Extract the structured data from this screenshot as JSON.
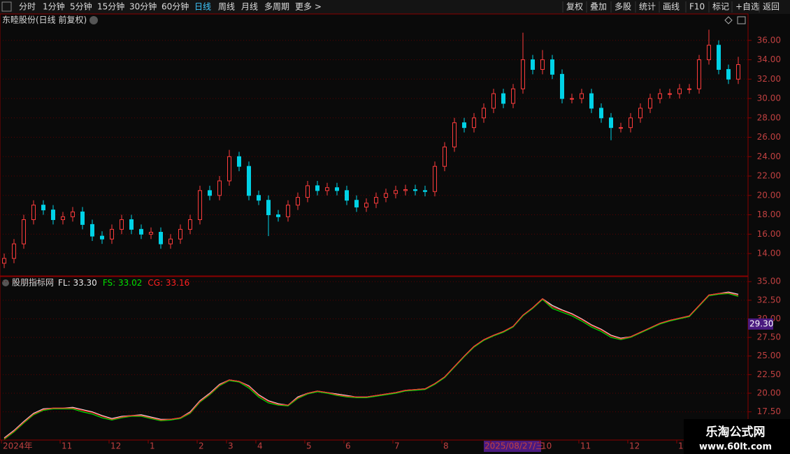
{
  "toolbar": {
    "left": [
      "分时",
      "1分钟",
      "5分钟",
      "15分钟",
      "30分钟",
      "60分钟",
      "日线",
      "周线",
      "月线",
      "多周期",
      "更多 >"
    ],
    "active_index": 6,
    "right": [
      "复权",
      "叠加",
      "多股",
      "统计",
      "画线",
      "F10",
      "标记",
      "+自选",
      "返回"
    ]
  },
  "watermark": {
    "title": "乐淘公式网",
    "url": "www.60lt.com"
  },
  "chart_data": [
    {
      "type": "candlestick",
      "title": "东睦股份(日线 前复权)",
      "up_color": "#ff3c3c",
      "down_color": "#00d2e6",
      "categories": [
        "2024年",
        null,
        null,
        null,
        null,
        null,
        "11",
        null,
        null,
        null,
        null,
        "12",
        null,
        null,
        null,
        "1",
        null,
        null,
        null,
        null,
        "2",
        null,
        null,
        "3",
        null,
        null,
        "4",
        null,
        null,
        null,
        null,
        "5",
        null,
        null,
        null,
        "6",
        null,
        null,
        null,
        null,
        "7",
        null,
        null,
        null,
        null,
        "8",
        null,
        null,
        null,
        null,
        "2025/08/27/三",
        null,
        null,
        null,
        null,
        "10",
        null,
        null,
        null,
        "11",
        null,
        null,
        null,
        null,
        "12",
        null,
        null,
        null,
        null,
        "1",
        null,
        null,
        null,
        null,
        null,
        null
      ],
      "x_cursor_index": 50,
      "open": [
        13.0,
        13.5,
        15.0,
        17.5,
        19.0,
        18.5,
        17.5,
        17.8,
        18.3,
        17.0,
        15.8,
        15.5,
        16.5,
        17.5,
        16.5,
        16.0,
        16.2,
        15.0,
        15.5,
        16.5,
        17.5,
        20.5,
        20.0,
        21.5,
        24.0,
        23.0,
        20.0,
        19.5,
        18.0,
        17.8,
        19.0,
        19.8,
        21.0,
        20.5,
        20.8,
        20.5,
        19.5,
        18.8,
        19.2,
        19.8,
        20.2,
        20.5,
        20.6,
        20.5,
        20.4,
        23.0,
        25.0,
        27.5,
        27.0,
        28.0,
        29.0,
        30.5,
        29.5,
        31.0,
        34.0,
        33.0,
        34.0,
        32.5,
        30.0,
        30.0,
        30.5,
        29.0,
        28.0,
        27.0,
        27.0,
        28.0,
        29.0,
        30.0,
        30.5,
        30.5,
        31.0,
        31.0,
        34.0,
        35.5,
        33.0,
        32.0
      ],
      "high": [
        14.0,
        15.5,
        18.0,
        19.5,
        19.5,
        19.0,
        18.3,
        18.8,
        18.8,
        17.5,
        16.3,
        17.0,
        18.0,
        18.0,
        17.0,
        16.7,
        16.7,
        16.0,
        17.0,
        18.0,
        21.0,
        21.0,
        22.0,
        24.7,
        24.5,
        23.5,
        20.5,
        20.0,
        18.5,
        19.5,
        20.3,
        21.5,
        21.5,
        21.3,
        21.3,
        21.0,
        20.0,
        19.7,
        20.3,
        20.7,
        21.0,
        21.1,
        21.1,
        21.0,
        23.5,
        25.5,
        28.0,
        28.0,
        28.5,
        29.5,
        31.0,
        31.0,
        31.5,
        36.8,
        34.5,
        35.0,
        34.5,
        33.0,
        30.5,
        31.0,
        31.0,
        29.5,
        28.5,
        27.5,
        28.5,
        29.5,
        30.5,
        31.0,
        31.0,
        31.5,
        31.5,
        34.5,
        37.1,
        36.0,
        33.5,
        34.3
      ],
      "low": [
        12.5,
        13.0,
        14.5,
        17.0,
        18.0,
        17.0,
        17.0,
        17.3,
        16.5,
        15.3,
        15.0,
        15.0,
        16.0,
        16.0,
        15.5,
        15.5,
        14.5,
        14.5,
        15.0,
        16.0,
        17.0,
        19.5,
        19.5,
        21.0,
        22.5,
        19.5,
        19.0,
        15.8,
        17.3,
        17.3,
        18.5,
        19.3,
        20.0,
        20.0,
        20.0,
        19.0,
        18.3,
        18.3,
        18.7,
        19.3,
        19.7,
        20.0,
        20.0,
        19.9,
        19.9,
        22.5,
        24.5,
        26.5,
        26.5,
        27.5,
        28.5,
        29.0,
        29.0,
        30.5,
        32.5,
        32.5,
        32.0,
        29.5,
        29.5,
        29.5,
        28.5,
        27.5,
        25.7,
        26.5,
        26.5,
        27.5,
        28.5,
        29.5,
        30.0,
        30.0,
        30.5,
        30.5,
        33.5,
        32.5,
        31.5,
        31.5
      ],
      "close": [
        13.5,
        15.0,
        17.5,
        19.0,
        18.5,
        17.5,
        17.8,
        18.3,
        17.0,
        15.8,
        15.5,
        16.5,
        17.5,
        16.5,
        16.0,
        16.2,
        15.0,
        15.5,
        16.5,
        17.5,
        20.5,
        20.0,
        21.5,
        24.0,
        23.0,
        20.0,
        19.5,
        18.0,
        17.8,
        19.0,
        19.8,
        21.0,
        20.5,
        20.8,
        20.5,
        19.5,
        18.8,
        19.2,
        19.8,
        20.2,
        20.5,
        20.6,
        20.5,
        20.4,
        23.0,
        25.0,
        27.5,
        27.0,
        28.0,
        29.0,
        30.5,
        29.5,
        31.0,
        34.0,
        33.0,
        34.0,
        32.5,
        30.0,
        30.0,
        30.5,
        29.0,
        28.0,
        27.0,
        27.0,
        28.0,
        29.0,
        30.0,
        30.5,
        30.5,
        31.0,
        31.0,
        34.0,
        35.5,
        33.0,
        32.0,
        33.5
      ],
      "ylim": [
        12.2,
        37.5
      ],
      "yticks": [
        {
          "value": 14,
          "label": "14.00"
        },
        {
          "value": 16,
          "label": "16.00"
        },
        {
          "value": 18,
          "label": "18.00"
        },
        {
          "value": 20,
          "label": "20.00"
        },
        {
          "value": 22,
          "label": "22.00"
        },
        {
          "value": 24,
          "label": "24.00"
        },
        {
          "value": 26,
          "label": "26.00"
        },
        {
          "value": 28,
          "label": "28.00"
        },
        {
          "value": 30,
          "label": "30.00"
        },
        {
          "value": 32,
          "label": "32.00"
        },
        {
          "value": 34,
          "label": "34.00"
        },
        {
          "value": 36,
          "label": "36.00"
        }
      ],
      "grid": true
    },
    {
      "type": "line",
      "title": "股朋指标网",
      "series": [
        {
          "name": "FL",
          "color": "#e8e8e8",
          "legend_value_label": "33.30",
          "values": [
            14.0,
            15.0,
            16.2,
            17.3,
            17.9,
            18.0,
            18.0,
            18.1,
            17.8,
            17.5,
            17.0,
            16.6,
            16.9,
            17.0,
            17.1,
            16.8,
            16.5,
            16.5,
            16.7,
            17.5,
            19.0,
            20.0,
            21.2,
            21.8,
            21.6,
            21.0,
            19.8,
            19.0,
            18.6,
            18.4,
            19.5,
            20.0,
            20.3,
            20.1,
            19.9,
            19.7,
            19.5,
            19.5,
            19.7,
            19.9,
            20.1,
            20.4,
            20.5,
            20.6,
            21.3,
            22.2,
            23.6,
            25.0,
            26.3,
            27.2,
            27.8,
            28.3,
            29.0,
            30.5,
            31.5,
            32.7,
            31.8,
            31.2,
            30.7,
            30.0,
            29.2,
            28.6,
            27.8,
            27.4,
            27.6,
            28.2,
            28.8,
            29.4,
            29.8,
            30.1,
            30.4,
            31.8,
            33.2,
            33.4,
            33.6,
            33.3
          ]
        },
        {
          "name": "FS",
          "color": "#00e000",
          "legend_value_label": "33.02",
          "values": [
            13.8,
            14.8,
            16.0,
            17.1,
            17.7,
            17.9,
            17.9,
            17.9,
            17.5,
            17.2,
            16.7,
            16.4,
            16.7,
            16.9,
            16.9,
            16.6,
            16.3,
            16.4,
            16.6,
            17.3,
            18.8,
            19.8,
            21.0,
            21.7,
            21.5,
            20.7,
            19.5,
            18.7,
            18.4,
            18.3,
            19.3,
            19.9,
            20.2,
            20.0,
            19.7,
            19.5,
            19.4,
            19.4,
            19.6,
            19.8,
            20.0,
            20.3,
            20.4,
            20.5,
            21.2,
            22.1,
            23.5,
            24.9,
            26.2,
            27.1,
            27.7,
            28.2,
            28.9,
            30.4,
            31.4,
            32.6,
            31.4,
            30.9,
            30.4,
            29.7,
            28.9,
            28.3,
            27.5,
            27.2,
            27.5,
            28.1,
            28.7,
            29.3,
            29.7,
            30.0,
            30.3,
            31.7,
            33.1,
            33.3,
            33.4,
            33.02
          ]
        },
        {
          "name": "CG",
          "color": "#ff2020",
          "legend_value_label": "33.16",
          "values": [
            13.9,
            14.9,
            16.1,
            17.2,
            17.8,
            18.0,
            18.0,
            18.0,
            17.7,
            17.4,
            16.9,
            16.5,
            16.8,
            17.0,
            17.0,
            16.7,
            16.4,
            16.5,
            16.7,
            17.4,
            18.9,
            19.9,
            21.1,
            21.8,
            21.6,
            20.9,
            19.7,
            18.9,
            18.5,
            18.4,
            19.4,
            20.0,
            20.3,
            20.1,
            19.8,
            19.6,
            19.5,
            19.5,
            19.7,
            19.9,
            20.1,
            20.4,
            20.5,
            20.6,
            21.3,
            22.2,
            23.6,
            25.0,
            26.3,
            27.2,
            27.8,
            28.3,
            29.0,
            30.5,
            31.5,
            32.7,
            31.6,
            31.1,
            30.6,
            29.9,
            29.1,
            28.5,
            27.7,
            27.3,
            27.6,
            28.2,
            28.8,
            29.4,
            29.8,
            30.1,
            30.4,
            31.8,
            33.2,
            33.4,
            33.5,
            33.16
          ]
        }
      ],
      "cursor_label": {
        "value": 29.3,
        "label": "29.30"
      },
      "ylim": [
        13.9,
        35.3
      ],
      "yticks": [
        {
          "value": 17.5,
          "label": "17.50"
        },
        {
          "value": 20,
          "label": "20.00"
        },
        {
          "value": 22.5,
          "label": "22.50"
        },
        {
          "value": 25,
          "label": "25.00"
        },
        {
          "value": 27.5,
          "label": "27.50"
        },
        {
          "value": 30,
          "label": "30.00"
        },
        {
          "value": 32.5,
          "label": "32.50"
        },
        {
          "value": 35,
          "label": "35.00"
        }
      ],
      "grid": true
    }
  ]
}
